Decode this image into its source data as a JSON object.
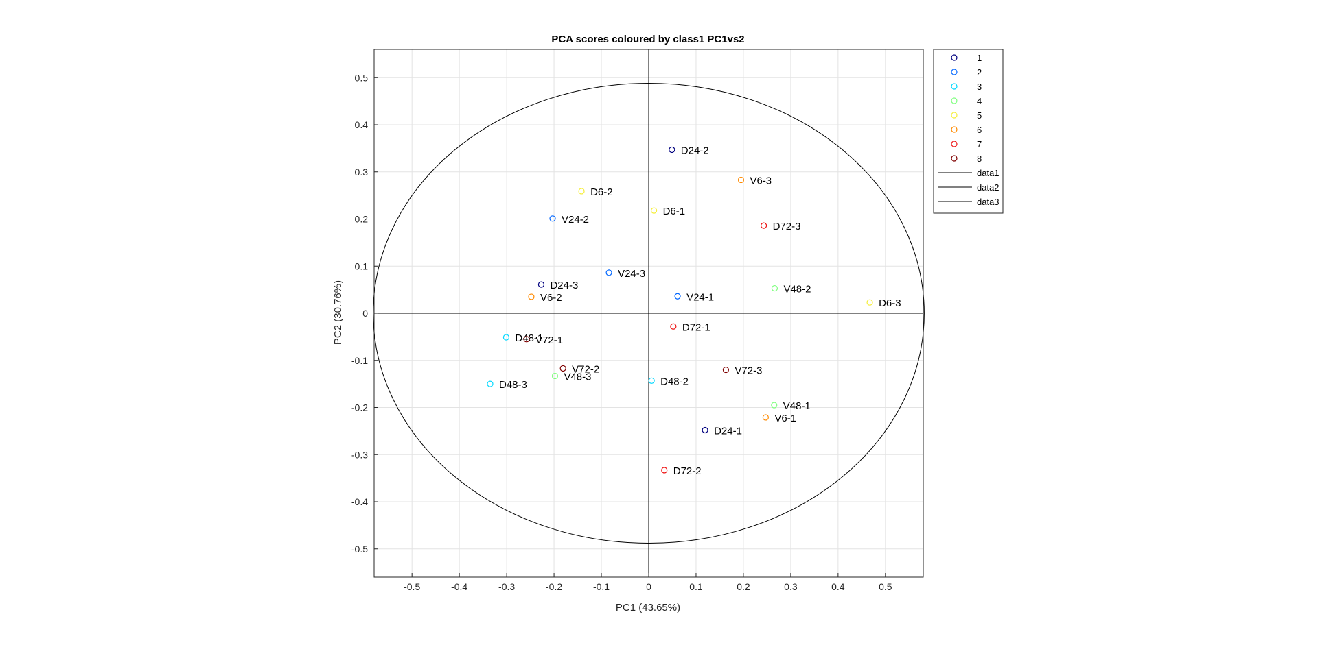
{
  "chart_data": {
    "type": "scatter",
    "title": "PCA scores coloured by class1 PC1vs2",
    "xlabel": "PC1 (43.65%)",
    "ylabel": "PC2 (30.76%)",
    "xlim": [
      -0.58,
      0.58
    ],
    "ylim": [
      -0.56,
      0.56
    ],
    "xticks": [
      -0.5,
      -0.4,
      -0.3,
      -0.2,
      -0.1,
      0,
      0.1,
      0.2,
      0.3,
      0.4,
      0.5
    ],
    "xtick_labels": [
      "-0.5",
      "-0.4",
      "-0.3",
      "-0.2",
      "-0.1",
      "0",
      "0.1",
      "0.2",
      "0.3",
      "0.4",
      "0.5"
    ],
    "yticks": [
      0.5,
      0.4,
      0.3,
      0.2,
      0.1,
      0,
      -0.1,
      -0.2,
      -0.3,
      -0.4,
      -0.5
    ],
    "ytick_labels": [
      "0.5",
      "0.4",
      "0.3",
      "0.2",
      "0.1",
      "0",
      "-0.1",
      "-0.2",
      "-0.3",
      "-0.4",
      "-0.5"
    ],
    "grid": true,
    "legend_position": "top-right-outside",
    "classes": [
      {
        "name": "1",
        "color": "#00007f"
      },
      {
        "name": "2",
        "color": "#0066ff"
      },
      {
        "name": "3",
        "color": "#00d8ff"
      },
      {
        "name": "4",
        "color": "#7fff7f"
      },
      {
        "name": "5",
        "color": "#f5ee3a"
      },
      {
        "name": "6",
        "color": "#ff8a00"
      },
      {
        "name": "7",
        "color": "#ee1111"
      },
      {
        "name": "8",
        "color": "#7f0000"
      }
    ],
    "lines": [
      {
        "name": "data1",
        "description": "ellipse",
        "rx": 0.582,
        "ry": 0.488
      },
      {
        "name": "data2",
        "description": "horizontal zero line",
        "y": 0
      },
      {
        "name": "data3",
        "description": "vertical zero line",
        "x": 0
      }
    ],
    "points": [
      {
        "label": "D24-2",
        "class": "1",
        "x": 0.049,
        "y": 0.347
      },
      {
        "label": "V6-3",
        "class": "6",
        "x": 0.195,
        "y": 0.283
      },
      {
        "label": "D6-2",
        "class": "5",
        "x": -0.142,
        "y": 0.259
      },
      {
        "label": "D6-1",
        "class": "5",
        "x": 0.011,
        "y": 0.218
      },
      {
        "label": "V24-2",
        "class": "2",
        "x": -0.203,
        "y": 0.201
      },
      {
        "label": "D72-3",
        "class": "7",
        "x": 0.243,
        "y": 0.186
      },
      {
        "label": "V24-3",
        "class": "2",
        "x": -0.084,
        "y": 0.086
      },
      {
        "label": "D24-3",
        "class": "1",
        "x": -0.227,
        "y": 0.061
      },
      {
        "label": "V48-2",
        "class": "4",
        "x": 0.266,
        "y": 0.053
      },
      {
        "label": "V24-1",
        "class": "2",
        "x": 0.061,
        "y": 0.036
      },
      {
        "label": "V6-2",
        "class": "6",
        "x": -0.248,
        "y": 0.035
      },
      {
        "label": "D6-3",
        "class": "5",
        "x": 0.467,
        "y": 0.023
      },
      {
        "label": "D72-1",
        "class": "7",
        "x": 0.052,
        "y": -0.028
      },
      {
        "label": "D48-1",
        "class": "3",
        "x": -0.301,
        "y": -0.051
      },
      {
        "label": "V72-1",
        "class": "8",
        "x": -0.258,
        "y": -0.055
      },
      {
        "label": "V72-3",
        "class": "8",
        "x": 0.163,
        "y": -0.12
      },
      {
        "label": "V72-2",
        "class": "8",
        "x": -0.181,
        "y": -0.117
      },
      {
        "label": "V48-3",
        "class": "4",
        "x": -0.198,
        "y": -0.133
      },
      {
        "label": "D48-2",
        "class": "3",
        "x": 0.006,
        "y": -0.143
      },
      {
        "label": "D48-3",
        "class": "3",
        "x": -0.335,
        "y": -0.15
      },
      {
        "label": "V48-1",
        "class": "4",
        "x": 0.265,
        "y": -0.195
      },
      {
        "label": "V6-1",
        "class": "6",
        "x": 0.247,
        "y": -0.221
      },
      {
        "label": "D24-1",
        "class": "1",
        "x": 0.119,
        "y": -0.248
      },
      {
        "label": "D72-2",
        "class": "7",
        "x": 0.033,
        "y": -0.333
      }
    ]
  }
}
